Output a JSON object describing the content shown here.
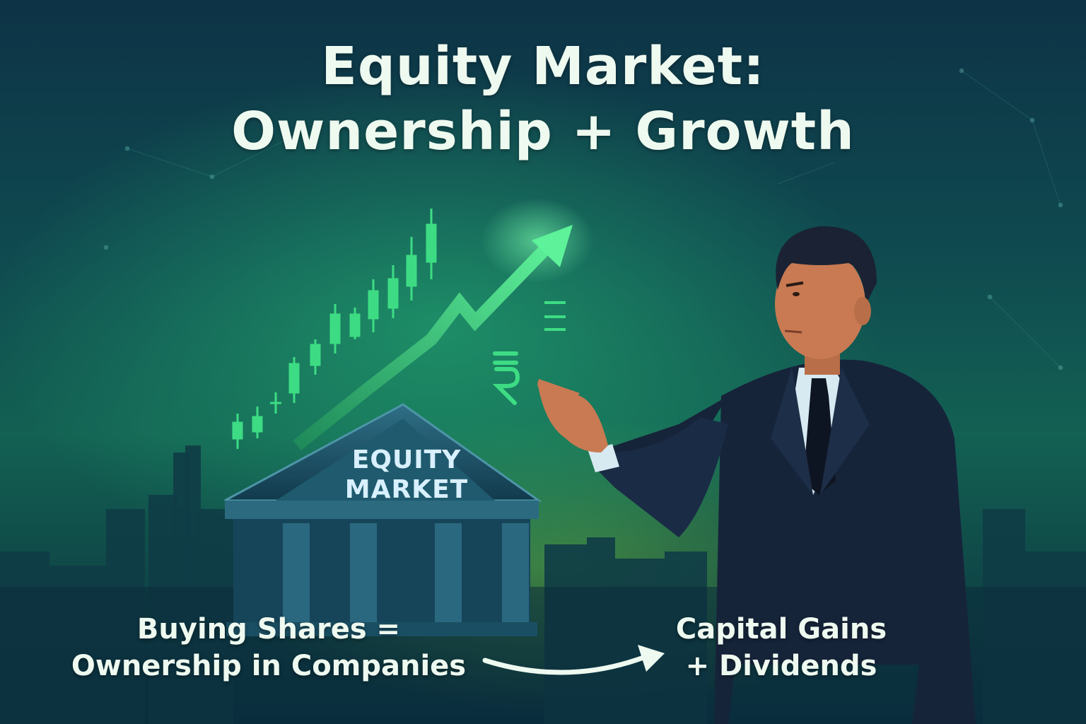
{
  "title": {
    "line1": "Equity Market:",
    "line2": "Ownership + Growth"
  },
  "building": {
    "line1": "EQUITY",
    "line2": "MARKET"
  },
  "captions": {
    "left_line1": "Buying Shares =",
    "left_line2": "Ownership in Companies",
    "right_line1": "Capital Gains",
    "right_line2": "+ Dividends"
  },
  "icons": [
    "rupee-icon",
    "up-trend-arrow-icon",
    "candlestick-chart-icon",
    "bank-building-icon",
    "curved-arrow-icon"
  ],
  "colors": {
    "accent_green": "#3ddc84",
    "text": "#eefaf0",
    "suit": "#16243a"
  }
}
